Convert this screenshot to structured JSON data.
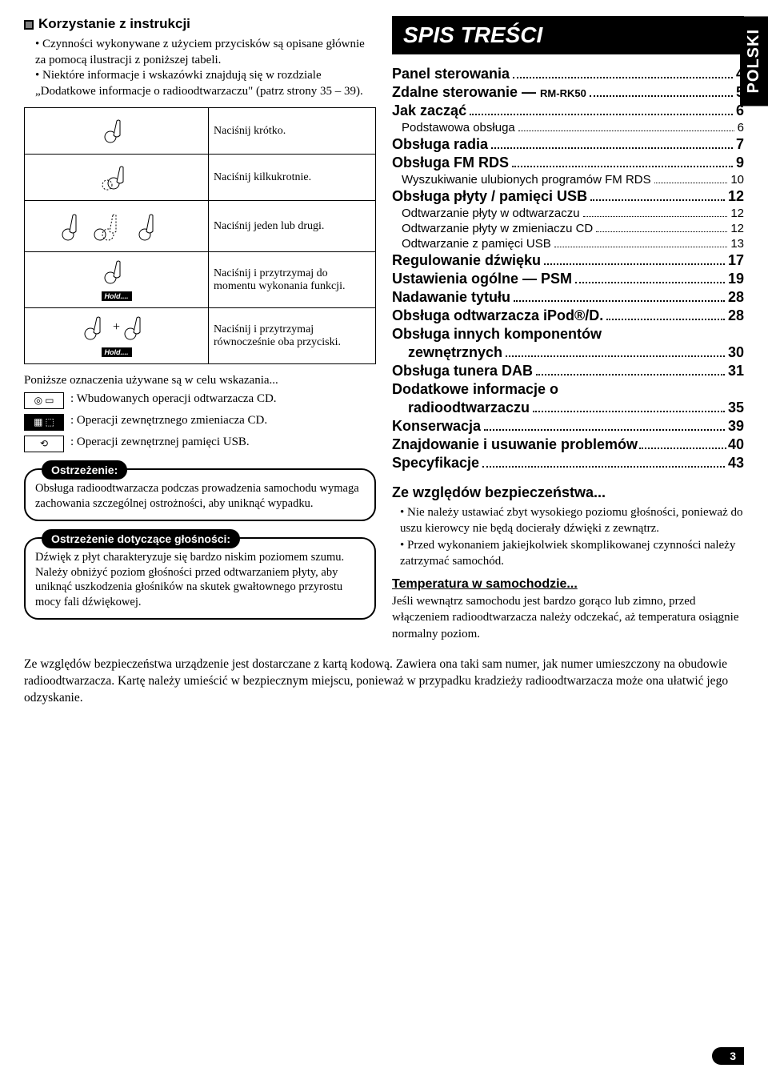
{
  "left": {
    "header": "Korzystanie z instrukcji",
    "intro_items": [
      "Czynności wykonywane z użyciem przycisków są opisane głównie za pomocą ilustracji z poniższej tabeli.",
      "Niektóre informacje i wskazówki znajdują się w rozdziale „Dodatkowe informacje o radioodtwarzaczu\" (patrz strony 35 – 39)."
    ],
    "press_table": [
      "Naciśnij krótko.",
      "Naciśnij kilkukrotnie.",
      "Naciśnij jeden lub drugi.",
      "Naciśnij i przytrzymaj do momentu wykonania funkcji.",
      "Naciśnij i przytrzymaj równocześnie oba przyciski."
    ],
    "hold_label": "Hold....",
    "indicators_intro": "Poniższe oznaczenia używane są w celu wskazania...",
    "indicators": [
      {
        "symbol": "◎ ▭",
        "text": ": Wbudowanych operacji odtwarzacza CD."
      },
      {
        "symbol": "▦ ⬚",
        "text": ": Operacji zewnętrznego zmieniacza CD."
      },
      {
        "symbol": "⟲",
        "text": ":    Operacji zewnętrznej pamięci USB."
      }
    ],
    "warning1_label": "Ostrzeżenie:",
    "warning1_text": "Obsługa radioodtwarzacza podczas prowadzenia samochodu wymaga zachowania szczególnej ostrożności, aby uniknąć wypadku.",
    "warning2_label": "Ostrzeżenie dotyczące głośności:",
    "warning2_text": "Dźwięk z płyt charakteryzuje się bardzo niskim poziomem szumu. Należy obniżyć poziom głośności przed odtwarzaniem płyty, aby uniknąć uszkodzenia głośników na skutek gwałtownego przyrostu mocy fali dźwiękowej."
  },
  "right": {
    "toc_header": "SPIS TREŚCI",
    "side_tab": "POLSKI",
    "toc": [
      {
        "label": "Panel sterowania",
        "page": "4",
        "bold": true
      },
      {
        "label": "Zdalne sterowanie — ",
        "small": "RM-RK50",
        "page": "5",
        "bold": true
      },
      {
        "label": "Jak zacząć",
        "page": "6",
        "bold": true
      },
      {
        "label": "Podstawowa obsługa",
        "page": "6",
        "sub": true
      },
      {
        "label": "Obsługa radia",
        "page": "7",
        "bold": true
      },
      {
        "label": "Obsługa FM RDS",
        "page": "9",
        "bold": true
      },
      {
        "label": "Wyszukiwanie ulubionych programów FM RDS",
        "page": "10",
        "sub": true
      },
      {
        "label": "Obsługa płyty / pamięci USB",
        "page": "12",
        "bold": true
      },
      {
        "label": "Odtwarzanie płyty w odtwarzaczu",
        "page": "12",
        "sub": true
      },
      {
        "label": "Odtwarzanie płyty w zmieniaczu CD",
        "page": "12",
        "sub": true
      },
      {
        "label": "Odtwarzanie z pamięci USB",
        "page": "13",
        "sub": true
      },
      {
        "label": "Regulowanie dźwięku",
        "page": "17",
        "bold": true
      },
      {
        "label": "Ustawienia ogólne — PSM",
        "page": "19",
        "bold": true
      },
      {
        "label": "Nadawanie tytułu",
        "page": "28",
        "bold": true
      },
      {
        "label": "Obsługa odtwarzacza iPod®/D.",
        "page": "28",
        "bold": true
      },
      {
        "label": "Obsługa innych komponentów",
        "page": "",
        "bold": true,
        "nodots": true
      },
      {
        "label": "zewnętrznych",
        "page": "30",
        "bold": true,
        "indent": true
      },
      {
        "label": "Obsługa tunera DAB",
        "page": "31",
        "bold": true
      },
      {
        "label": "Dodatkowe informacje o",
        "page": "",
        "bold": true,
        "nodots": true
      },
      {
        "label": "radioodtwarzaczu",
        "page": "35",
        "bold": true,
        "indent": true
      },
      {
        "label": "Konserwacja",
        "page": "39",
        "bold": true
      },
      {
        "label": "Znajdowanie i usuwanie problemów",
        "page": "40",
        "bold": true,
        "tight": true
      },
      {
        "label": "Specyfikacje",
        "page": "43",
        "bold": true
      }
    ],
    "safety_header": "Ze względów bezpieczeństwa...",
    "safety_items": [
      "Nie należy ustawiać zbyt wysokiego poziomu głośności, ponieważ do uszu kierowcy nie będą docierały dźwięki z zewnątrz.",
      "Przed wykonaniem jakiejkolwiek skomplikowanej czynności należy zatrzymać samochód."
    ],
    "temp_header": "Temperatura w samochodzie...",
    "temp_text": "Jeśli wewnątrz samochodu jest bardzo gorąco lub zimno, przed włączeniem radioodtwarzacza należy odczekać, aż temperatura osiągnie normalny poziom."
  },
  "footer": "Ze względów bezpieczeństwa urządzenie jest dostarczane z kartą kodową. Zawiera ona taki sam numer, jak numer umieszczony na obudowie radioodtwarzacza. Kartę należy umieścić w bezpiecznym miejscu, ponieważ w przypadku kradzieży radioodtwarzacza może ona ułatwić jego odzyskanie.",
  "page_number": "3",
  "colors": {
    "bg": "#ffffff",
    "text": "#000000",
    "accent": "#000000"
  }
}
